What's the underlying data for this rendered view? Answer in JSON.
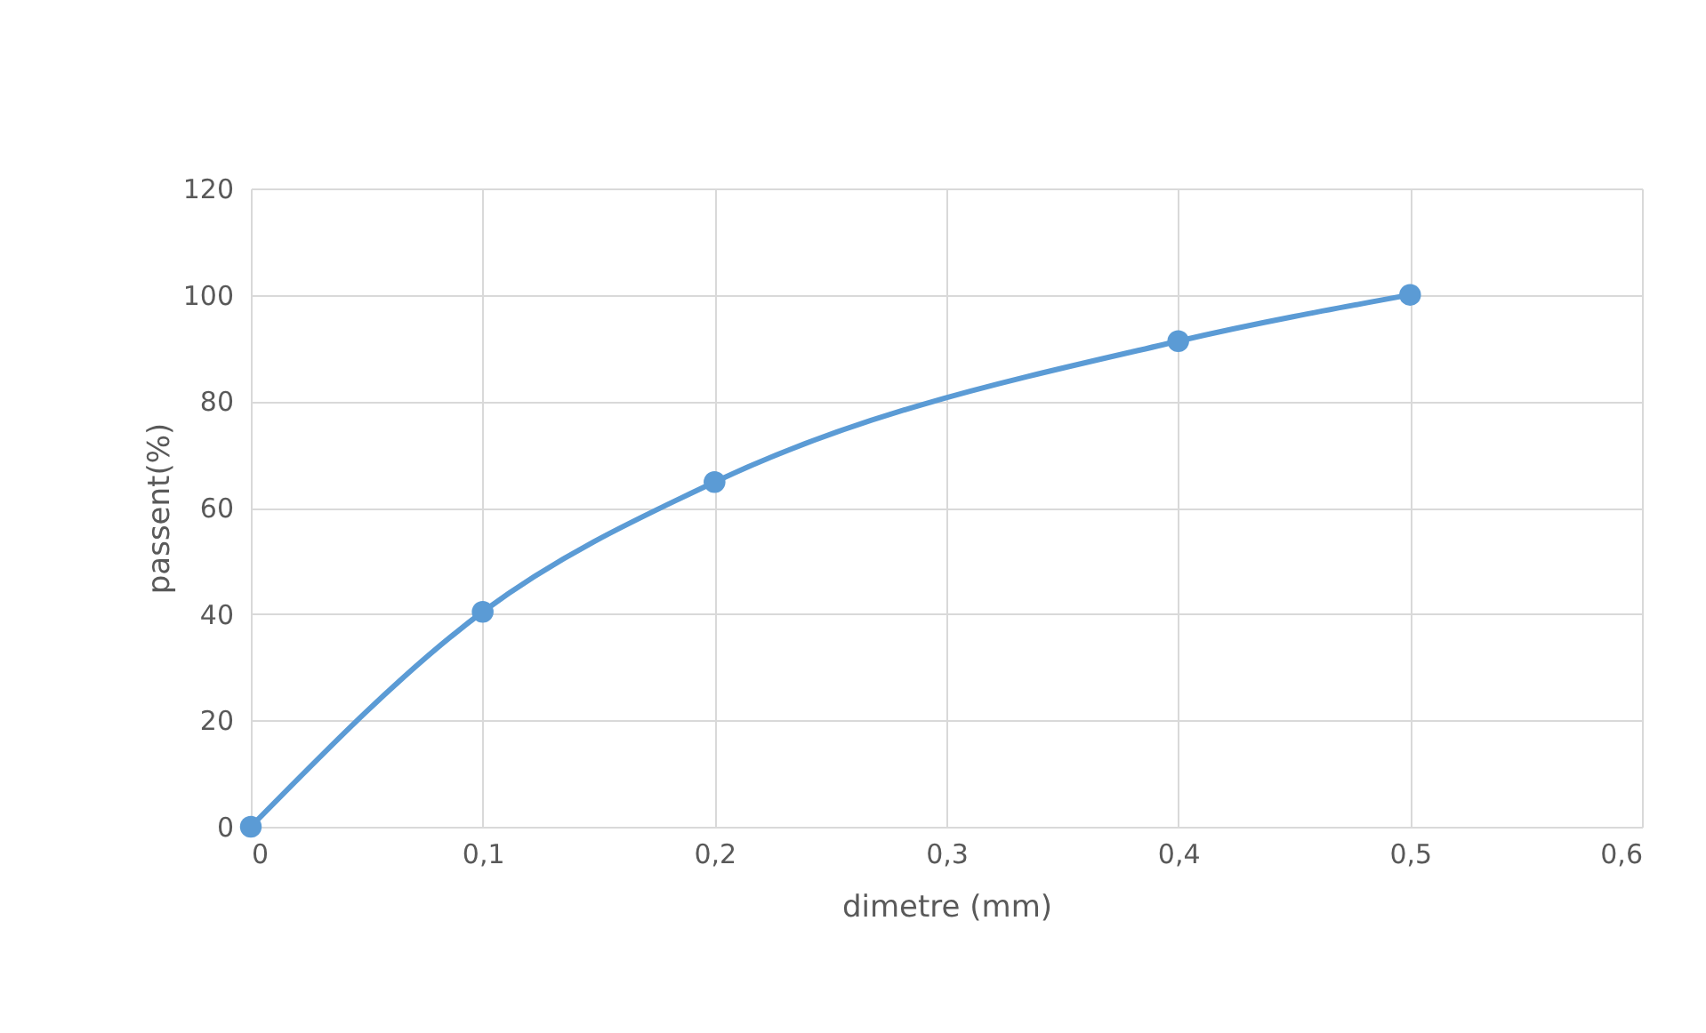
{
  "chart_data": {
    "type": "line",
    "xlabel": "dimetre (mm)",
    "ylabel": "passent(%)",
    "x": [
      0,
      0.1,
      0.2,
      0.4,
      0.5
    ],
    "series": [
      {
        "color": "#5b9bd5",
        "values": [
          0,
          40.4,
          64.8,
          91.3,
          100
        ]
      }
    ],
    "xlim": [
      0,
      0.6
    ],
    "xticks": [
      0,
      {
        "value": 0.1,
        "label": "0,1"
      },
      {
        "value": 0.2,
        "label": "0,2"
      },
      {
        "value": 0.3,
        "label": "0,3"
      },
      {
        "value": 0.4,
        "label": "0,4"
      },
      {
        "value": 0.5,
        "label": "0,5"
      },
      {
        "value": 0.6,
        "label": "0,6"
      }
    ],
    "ylim": [
      0,
      120
    ],
    "yticks": [
      0,
      20,
      40,
      60,
      80,
      100,
      120
    ],
    "grid": true,
    "marker": "circle",
    "line_style": "solid"
  }
}
